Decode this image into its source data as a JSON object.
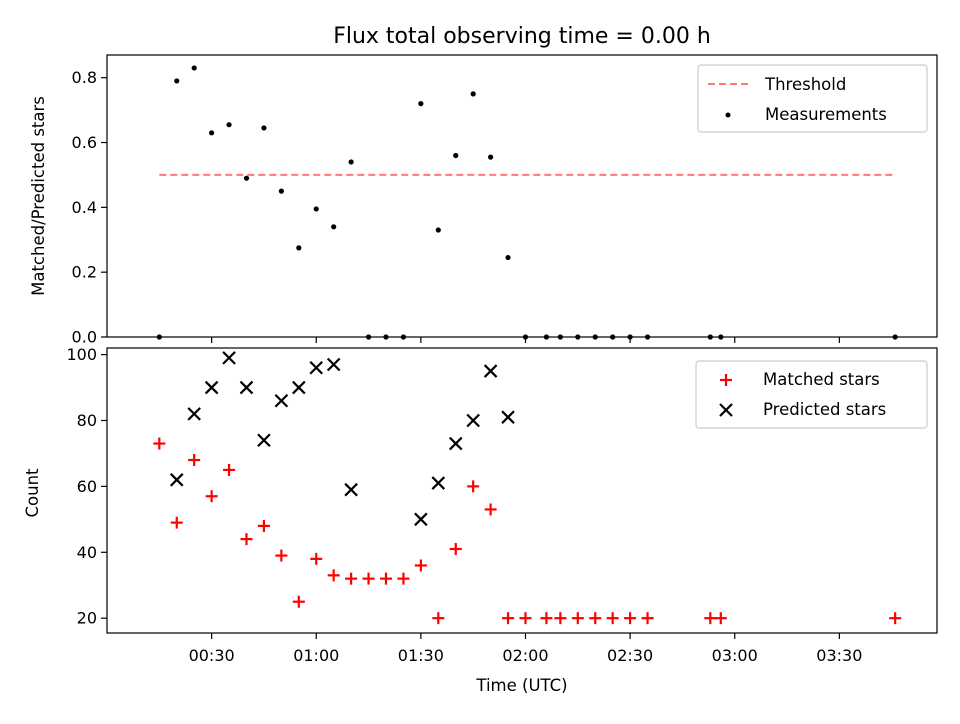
{
  "chart_data": [
    {
      "panel": "top",
      "type": "scatter",
      "title": "Flux total observing time = 0.00 h",
      "xlabel": "",
      "ylabel": "Matched/Predicted stars",
      "xlim_minutes": [
        0,
        238
      ],
      "ylim": [
        0,
        0.87
      ],
      "yticks": [
        0.0,
        0.2,
        0.4,
        0.6,
        0.8
      ],
      "ytick_labels": [
        "0.0",
        "0.2",
        "0.4",
        "0.6",
        "0.8"
      ],
      "legend_position": "top-right",
      "series": [
        {
          "name": "Threshold",
          "kind": "dashed-line",
          "color": "#ff7777",
          "x": [
            "00:15",
            "03:46"
          ],
          "y": [
            0.5,
            0.5
          ]
        },
        {
          "name": "Measurements",
          "kind": "dots",
          "color": "#000000",
          "x": [
            "00:15",
            "00:20",
            "00:25",
            "00:30",
            "00:35",
            "00:40",
            "00:45",
            "00:50",
            "00:55",
            "01:00",
            "01:05",
            "01:10",
            "01:15",
            "01:20",
            "01:25",
            "01:30",
            "01:35",
            "01:40",
            "01:45",
            "01:50",
            "01:55",
            "02:00",
            "02:06",
            "02:10",
            "02:15",
            "02:20",
            "02:25",
            "02:30",
            "02:35",
            "02:53",
            "02:56",
            "03:46"
          ],
          "y": [
            0.0,
            0.79,
            0.83,
            0.63,
            0.655,
            0.49,
            0.645,
            0.45,
            0.275,
            0.395,
            0.34,
            0.54,
            0.0,
            0.0,
            0.0,
            0.72,
            0.33,
            0.56,
            0.75,
            0.555,
            0.245,
            0.0,
            0.0,
            0.0,
            0.0,
            0.0,
            0.0,
            0.0,
            0.0,
            0.0,
            0.0,
            0.0
          ]
        }
      ]
    },
    {
      "panel": "bottom",
      "type": "scatter",
      "title": "",
      "xlabel": "Time (UTC)",
      "ylabel": "Count",
      "xlim_minutes": [
        0,
        238
      ],
      "ylim": [
        15.5,
        102
      ],
      "yticks": [
        20,
        40,
        60,
        80,
        100
      ],
      "ytick_labels": [
        "20",
        "40",
        "60",
        "80",
        "100"
      ],
      "xtick_labels": [
        "00:30",
        "01:00",
        "01:30",
        "02:00",
        "02:30",
        "03:00",
        "03:30"
      ],
      "legend_position": "top-right",
      "series": [
        {
          "name": "Matched stars",
          "kind": "plus",
          "color": "#ff0000",
          "x": [
            "00:15",
            "00:20",
            "00:25",
            "00:30",
            "00:35",
            "00:40",
            "00:45",
            "00:50",
            "00:55",
            "01:00",
            "01:05",
            "01:10",
            "01:15",
            "01:20",
            "01:25",
            "01:30",
            "01:35",
            "01:40",
            "01:45",
            "01:50",
            "01:55",
            "02:00",
            "02:06",
            "02:10",
            "02:15",
            "02:20",
            "02:25",
            "02:30",
            "02:35",
            "02:53",
            "02:56",
            "03:46"
          ],
          "y": [
            73,
            49,
            68,
            57,
            65,
            44,
            48,
            39,
            25,
            38,
            33,
            32,
            32,
            32,
            32,
            36,
            20,
            41,
            60,
            53,
            20,
            20,
            20,
            20,
            20,
            20,
            20,
            20,
            20,
            20,
            20,
            20
          ]
        },
        {
          "name": "Predicted stars",
          "kind": "x",
          "color": "#000000",
          "x": [
            "00:20",
            "00:25",
            "00:30",
            "00:35",
            "00:40",
            "00:45",
            "00:50",
            "00:55",
            "01:00",
            "01:05",
            "01:10",
            "01:30",
            "01:35",
            "01:40",
            "01:45",
            "01:50",
            "01:55"
          ],
          "y": [
            62,
            82,
            90,
            99,
            90,
            74,
            86,
            90,
            96,
            97,
            59,
            50,
            61,
            73,
            80,
            95,
            81
          ]
        }
      ]
    }
  ]
}
